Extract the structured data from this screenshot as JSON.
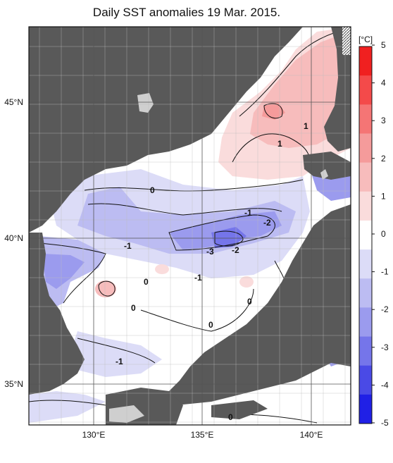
{
  "title": "Daily SST anomalies 19 Mar. 2015.",
  "longitude_labels": [
    "130°E",
    "135°E",
    "140°E"
  ],
  "latitude_labels": [
    "35°N",
    "40°N",
    "45°N"
  ],
  "colorbar": {
    "unit": "[°C]",
    "tick_labels": [
      "5",
      "4",
      "3",
      "2",
      "1",
      "0",
      "-1",
      "-2",
      "-3",
      "-4",
      "-5"
    ],
    "colors": [
      "#f02020",
      "#f44a4a",
      "#f57575",
      "#f59b9b",
      "#f7bcbc",
      "#fadcdc",
      "#ffffff",
      "#dcdcf7",
      "#bcbcf2",
      "#9b9bee",
      "#7575ea",
      "#4a4ae6",
      "#2020e6"
    ]
  },
  "contour_labels": [
    "1",
    "1",
    "0",
    "-1",
    "-2",
    "-1",
    "-3",
    "-2",
    "-1",
    "0",
    "0",
    "0",
    "0",
    "-1",
    "0"
  ],
  "colors": {
    "land": "#595959",
    "ice_land": "#cfcfcf",
    "grid": "#888888"
  }
}
